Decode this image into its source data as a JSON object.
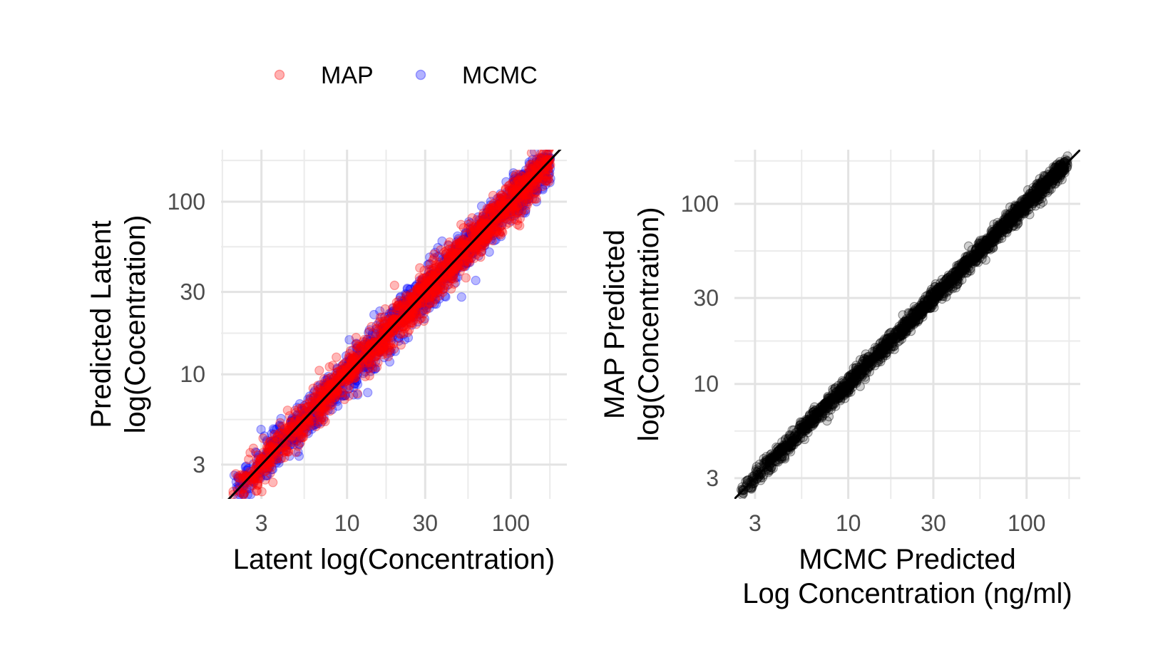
{
  "legend": {
    "placement": "top",
    "entries": [
      {
        "label": "MAP",
        "color": "#ff0000"
      },
      {
        "label": "MCMC",
        "color": "#0000ff"
      }
    ]
  },
  "chart_data": [
    {
      "type": "scatter",
      "xlabel": "Latent log(Concentration)",
      "ylabel": [
        "Predicted Latent",
        "log(Cocentration)"
      ],
      "xscale": "log",
      "yscale": "log",
      "xlim": [
        1.7,
        220
      ],
      "ylim": [
        1.9,
        200
      ],
      "xticks": [
        3,
        10,
        30,
        100
      ],
      "xticklabels": [
        "3",
        "10",
        "30",
        "100"
      ],
      "yticks": [
        3,
        10,
        30,
        100
      ],
      "yticklabels": [
        "3",
        "10",
        "30",
        "100"
      ],
      "grid": true,
      "reference_line": "y = x",
      "series": [
        {
          "name": "MCMC",
          "color": "#0000ff",
          "x_range": [
            2.0,
            175
          ],
          "n": 1500,
          "log_sd": 0.06
        },
        {
          "name": "MAP",
          "color": "#ff0000",
          "x_range": [
            2.0,
            175
          ],
          "n": 1500,
          "log_sd": 0.06
        }
      ]
    },
    {
      "type": "scatter",
      "xlabel": [
        "MCMC Predicted",
        "Log Concentration (ng/ml)"
      ],
      "ylabel": [
        "MAP Predicted",
        "log(Concentration)"
      ],
      "xscale": "log",
      "yscale": "log",
      "xlim": [
        2.3,
        200
      ],
      "ylim": [
        2.3,
        200
      ],
      "xticks": [
        3,
        10,
        30,
        100
      ],
      "xticklabels": [
        "3",
        "10",
        "30",
        "100"
      ],
      "yticks": [
        3,
        10,
        30,
        100
      ],
      "yticklabels": [
        "3",
        "10",
        "30",
        "100"
      ],
      "grid": true,
      "reference_line": "y = x",
      "series": [
        {
          "color": "#000000",
          "x_range": [
            2.5,
            170
          ],
          "n": 2000,
          "log_sd": 0.025
        }
      ]
    }
  ]
}
